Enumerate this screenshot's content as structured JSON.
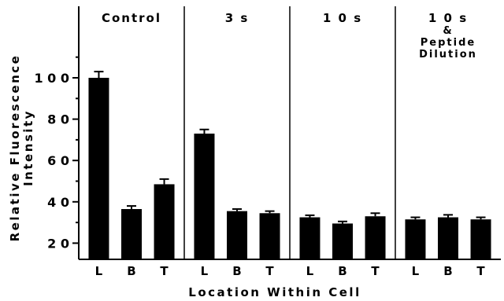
{
  "chart_data": {
    "type": "bar",
    "title": "",
    "xlabel": "Location Within Cell",
    "ylabel_lines": [
      "Relative Fluorescence",
      "Intensity"
    ],
    "ylim": [
      0,
      120
    ],
    "yticks": [
      20,
      40,
      60,
      80,
      100
    ],
    "ytick_labels": [
      "2 0",
      "4 0",
      "6 0",
      "8 0",
      "1 0 0"
    ],
    "categories": [
      "L",
      "B",
      "T"
    ],
    "panels": [
      {
        "title_lines": [
          "Control"
        ],
        "values": [
          100,
          36.5,
          48.5
        ],
        "errors": [
          3,
          1.5,
          2.5
        ]
      },
      {
        "title_lines": [
          "3 s"
        ],
        "values": [
          73,
          35.5,
          34.5
        ],
        "errors": [
          2,
          1,
          1
        ]
      },
      {
        "title_lines": [
          "1 0  s"
        ],
        "values": [
          32.5,
          29.5,
          33
        ],
        "errors": [
          1,
          1,
          1.5
        ]
      },
      {
        "title_lines": [
          "1 0  s",
          "&",
          "Peptide",
          "Dilution"
        ],
        "values": [
          31.5,
          32.5,
          31.5
        ],
        "errors": [
          1,
          1.2,
          1
        ]
      }
    ],
    "grid": false,
    "bar_color": "#000000",
    "text_color": "#000000"
  }
}
